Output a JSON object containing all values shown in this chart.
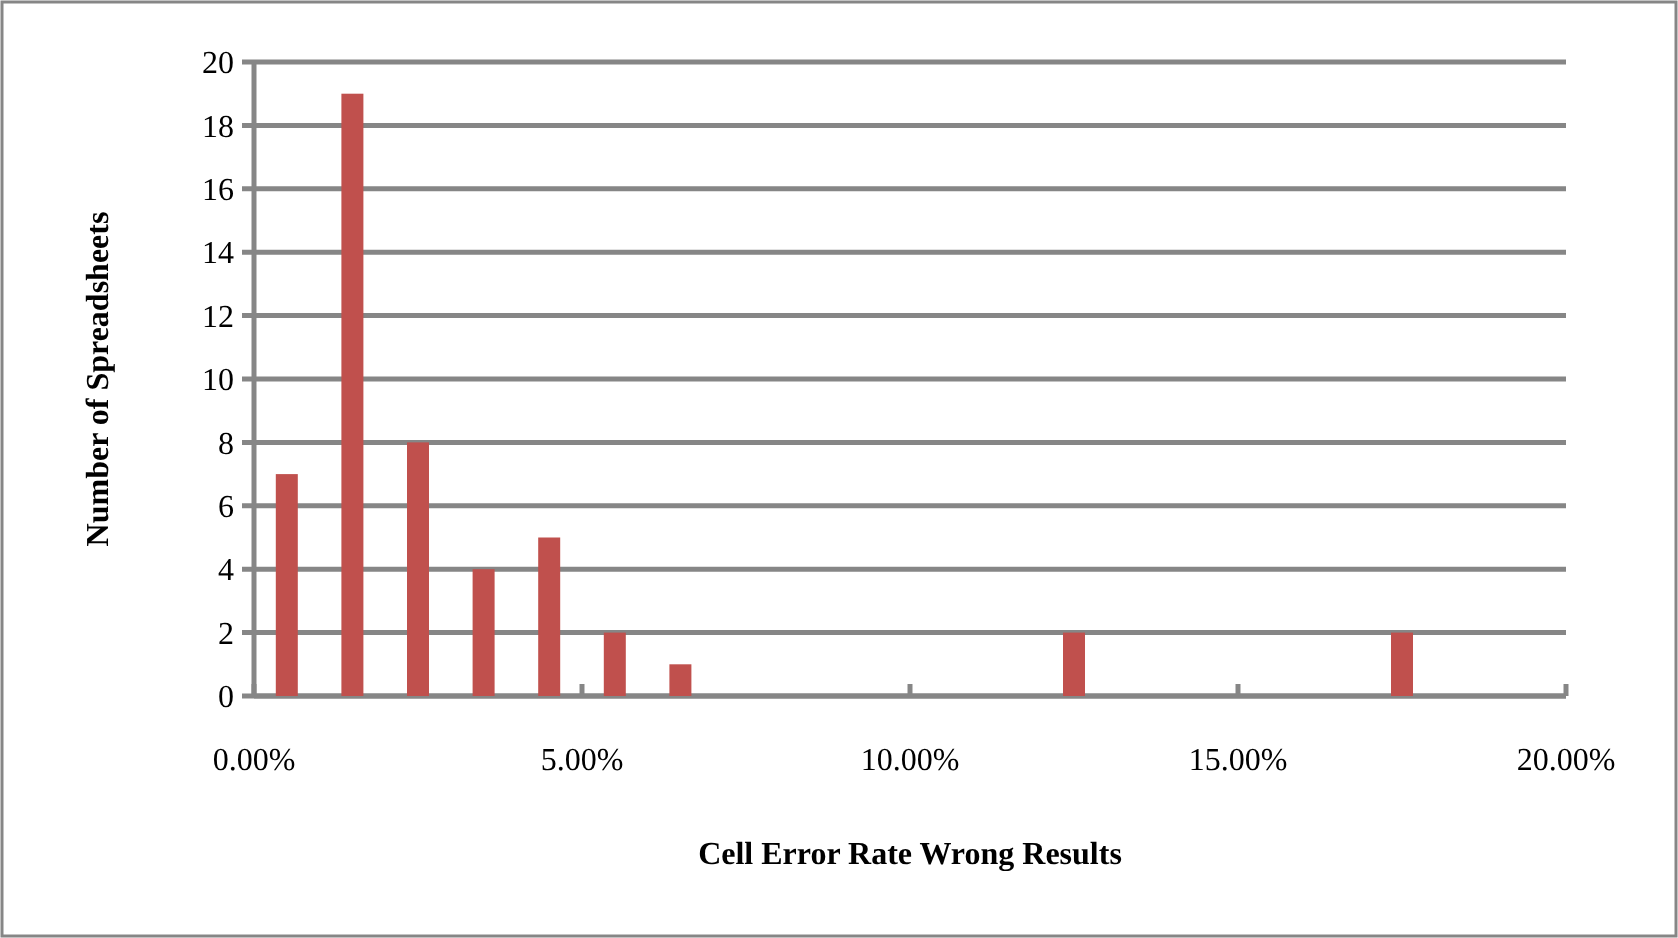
{
  "chart_data": {
    "type": "bar",
    "xlabel": "Cell Error Rate Wrong Results",
    "ylabel": "Number of Spreadsheets",
    "x": [
      0.5,
      1.5,
      2.5,
      3.5,
      4.5,
      5.5,
      6.5,
      12.5,
      17.5
    ],
    "values": [
      7,
      19,
      8,
      4,
      5,
      2,
      1,
      2,
      2
    ],
    "color": "#c0504d",
    "xlim": [
      0,
      20
    ],
    "xticks": [
      {
        "value": 0,
        "label": "0.00%"
      },
      {
        "value": 5,
        "label": "5.00%"
      },
      {
        "value": 10,
        "label": "10.00%"
      },
      {
        "value": 15,
        "label": "15.00%"
      },
      {
        "value": 20,
        "label": "20.00%"
      }
    ],
    "ylim": [
      0,
      20
    ],
    "yticks": [
      0,
      2,
      4,
      6,
      8,
      10,
      12,
      14,
      16,
      18,
      20
    ],
    "grid": "y"
  }
}
